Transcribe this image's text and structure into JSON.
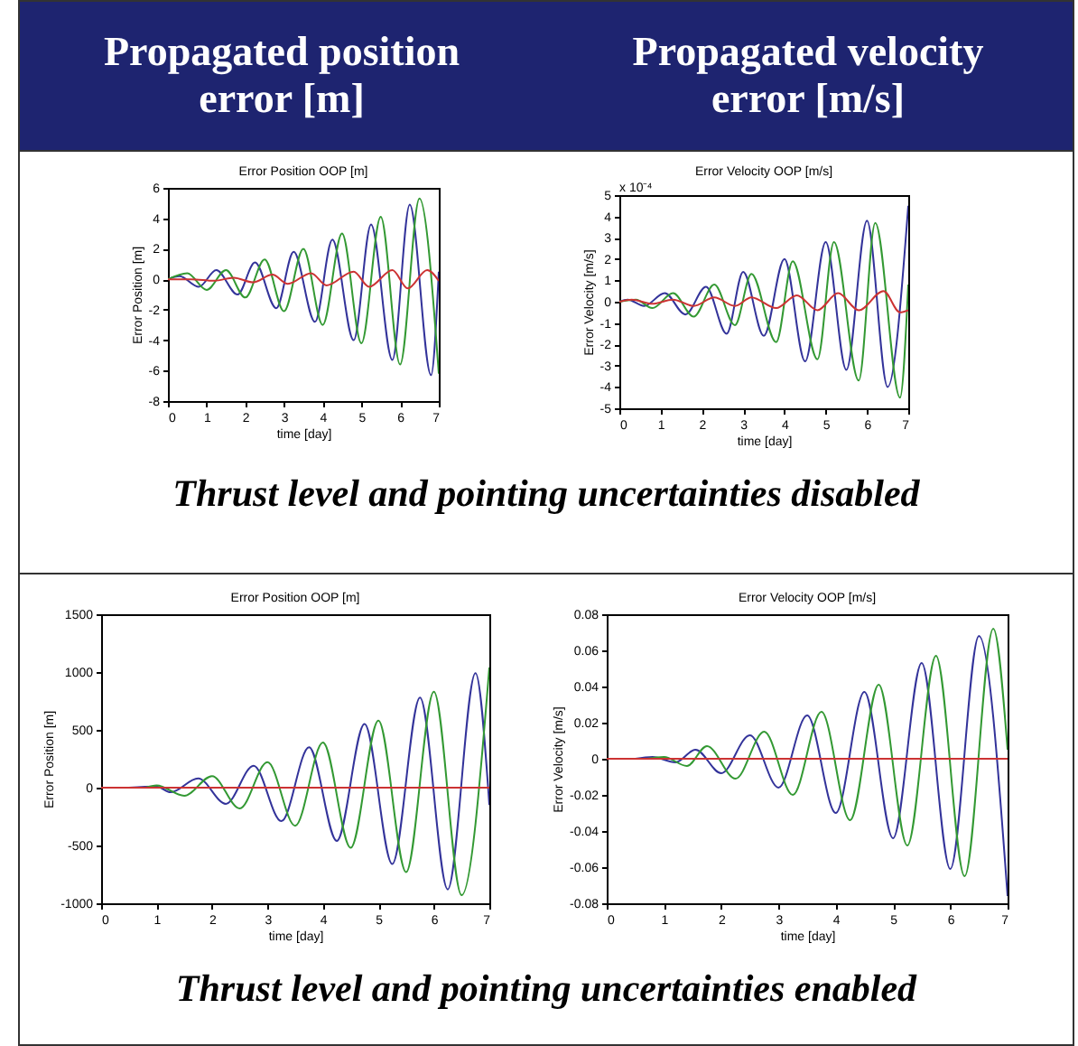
{
  "chart_data": [
    {
      "type": "line",
      "title": "Error Position OOP [m]",
      "xlabel": "time [day]",
      "ylabel": "Error Position [m]",
      "annotations": [
        "Propagated position error [m]",
        "Thrust level and pointing uncertainties disabled"
      ],
      "xlim": [
        0,
        7
      ],
      "xticks": [
        0,
        1,
        2,
        3,
        4,
        5,
        6,
        7
      ],
      "ylim": [
        -8,
        6
      ],
      "yticks": [
        -8,
        -6,
        -4,
        -2,
        0,
        2,
        4,
        6
      ],
      "grid": false,
      "marker": "none",
      "series": [
        {
          "color": "#33339a",
          "x": [
            0,
            0.3,
            0.8,
            1.25,
            1.8,
            2.25,
            2.8,
            3.25,
            3.8,
            4.25,
            4.8,
            5.25,
            5.8,
            6.25,
            6.8,
            7
          ],
          "values": [
            0,
            0.2,
            -0.5,
            0.6,
            -1.0,
            1.1,
            -1.9,
            1.8,
            -2.8,
            2.6,
            -4.0,
            3.6,
            -5.3,
            4.9,
            -6.3,
            0.5
          ]
        },
        {
          "color": "#339933",
          "x": [
            0,
            0.5,
            1.0,
            1.5,
            2.0,
            2.5,
            3.0,
            3.5,
            4.0,
            4.5,
            5.0,
            5.5,
            6.0,
            6.5,
            7.0
          ],
          "values": [
            0,
            0.4,
            -0.7,
            0.6,
            -1.2,
            1.3,
            -2.1,
            2.0,
            -3.0,
            3.0,
            -4.2,
            4.1,
            -5.6,
            5.3,
            -6.2
          ]
        },
        {
          "color": "#cc3333",
          "x": [
            0,
            0.6,
            1.2,
            1.7,
            2.2,
            2.7,
            3.1,
            3.7,
            4.1,
            4.8,
            5.2,
            5.8,
            6.2,
            6.7,
            7.0
          ],
          "values": [
            0,
            0,
            -0.1,
            0.1,
            -0.2,
            0.3,
            -0.3,
            0.4,
            -0.4,
            0.5,
            -0.5,
            0.6,
            -0.6,
            0.6,
            -0.1
          ]
        }
      ]
    },
    {
      "type": "line",
      "title": "Error Velocity OOP [m/s]",
      "xlabel": "time [day]",
      "ylabel": "Error Velocity [m/s]",
      "annotations": [
        "Propagated velocity error [m/s]",
        "x 10⁻⁴"
      ],
      "xlim": [
        0,
        7
      ],
      "xticks": [
        0,
        1,
        2,
        3,
        4,
        5,
        6,
        7
      ],
      "ylim": [
        -5,
        5
      ],
      "yticks": [
        -5,
        -4,
        -3,
        -2,
        -1,
        0,
        1,
        2,
        3,
        4,
        5
      ],
      "grid": false,
      "marker": "none",
      "series": [
        {
          "color": "#33339a",
          "x": [
            0,
            0.2,
            0.6,
            1.1,
            1.6,
            2.1,
            2.6,
            3.0,
            3.5,
            4.0,
            4.5,
            5.0,
            5.5,
            6.0,
            6.5,
            7.0
          ],
          "values": [
            0,
            0.1,
            -0.2,
            0.4,
            -0.6,
            0.7,
            -1.5,
            1.4,
            -1.6,
            2.0,
            -2.8,
            2.8,
            -3.2,
            3.8,
            -4.0,
            4.5
          ]
        },
        {
          "color": "#339933",
          "x": [
            0,
            0.4,
            0.8,
            1.3,
            1.8,
            2.3,
            2.8,
            3.2,
            3.8,
            4.2,
            4.8,
            5.2,
            5.8,
            6.2,
            6.8,
            7.0
          ],
          "values": [
            0,
            0.1,
            -0.3,
            0.4,
            -0.7,
            0.8,
            -1.1,
            1.3,
            -1.9,
            1.9,
            -2.7,
            2.8,
            -3.7,
            3.7,
            -4.5,
            0.8
          ]
        },
        {
          "color": "#cc3333",
          "x": [
            0,
            0.3,
            0.8,
            1.3,
            1.8,
            2.3,
            2.8,
            3.2,
            3.8,
            4.3,
            4.8,
            5.3,
            5.8,
            6.4,
            6.8,
            7.0
          ],
          "values": [
            0,
            0.1,
            -0.1,
            0.1,
            -0.2,
            0.2,
            -0.2,
            0.2,
            -0.3,
            0.3,
            -0.4,
            0.4,
            -0.4,
            0.5,
            -0.5,
            -0.4
          ]
        }
      ]
    },
    {
      "type": "line",
      "title": "Error Position OOP [m]",
      "xlabel": "time [day]",
      "ylabel": "Error Position [m]",
      "xlim": [
        0,
        7
      ],
      "xticks": [
        0,
        1,
        2,
        3,
        4,
        5,
        6,
        7
      ],
      "ylim": [
        -1000,
        1500
      ],
      "yticks": [
        -1000,
        -500,
        0,
        500,
        1000,
        1500
      ],
      "grid": false,
      "marker": "none",
      "series": [
        {
          "color": "#33339a",
          "x": [
            0.5,
            1.0,
            1.25,
            1.75,
            2.25,
            2.75,
            3.25,
            3.75,
            4.25,
            4.75,
            5.25,
            5.75,
            6.25,
            6.75,
            7.0
          ],
          "values": [
            0,
            10,
            -40,
            80,
            -140,
            190,
            -290,
            350,
            -460,
            550,
            -660,
            780,
            -880,
            990,
            -150
          ]
        },
        {
          "color": "#339933",
          "x": [
            0.8,
            1.0,
            1.5,
            2.0,
            2.5,
            3.0,
            3.5,
            4.0,
            4.5,
            5.0,
            5.5,
            6.0,
            6.5,
            7.0
          ],
          "values": [
            0,
            20,
            -70,
            100,
            -180,
            220,
            -330,
            390,
            -520,
            580,
            -730,
            830,
            -930,
            1040
          ]
        },
        {
          "color": "#cc3333",
          "x": [
            0,
            7
          ],
          "values": [
            0,
            0
          ]
        }
      ]
    },
    {
      "type": "line",
      "title": "Error Velocity OOP [m/s]",
      "xlabel": "time [day]",
      "ylabel": "Error Velocity [m/s]",
      "annotations": [
        "Thrust level and pointing uncertainties enabled"
      ],
      "xlim": [
        0,
        7
      ],
      "xticks": [
        0,
        1,
        2,
        3,
        4,
        5,
        6,
        7
      ],
      "ylim": [
        -0.08,
        0.08
      ],
      "yticks": [
        -0.08,
        -0.06,
        -0.04,
        -0.02,
        0,
        0.02,
        0.04,
        0.06,
        0.08
      ],
      "grid": false,
      "marker": "none",
      "series": [
        {
          "color": "#33339a",
          "x": [
            0.5,
            0.8,
            1.2,
            1.55,
            2.0,
            2.5,
            3.0,
            3.5,
            4.0,
            4.5,
            5.0,
            5.5,
            6.0,
            6.5,
            7.0
          ],
          "values": [
            0,
            0.001,
            -0.002,
            0.005,
            -0.008,
            0.013,
            -0.016,
            0.024,
            -0.03,
            0.037,
            -0.044,
            0.053,
            -0.061,
            0.068,
            -0.076
          ]
        },
        {
          "color": "#339933",
          "x": [
            0.7,
            1.0,
            1.4,
            1.75,
            2.25,
            2.75,
            3.25,
            3.75,
            4.25,
            4.75,
            5.25,
            5.75,
            6.25,
            6.75,
            7.0
          ],
          "values": [
            0,
            0.001,
            -0.004,
            0.007,
            -0.011,
            0.015,
            -0.02,
            0.026,
            -0.034,
            0.041,
            -0.048,
            0.057,
            -0.065,
            0.072,
            0.005
          ]
        },
        {
          "color": "#cc3333",
          "x": [
            0,
            7
          ],
          "values": [
            0,
            0
          ]
        }
      ]
    }
  ]
}
